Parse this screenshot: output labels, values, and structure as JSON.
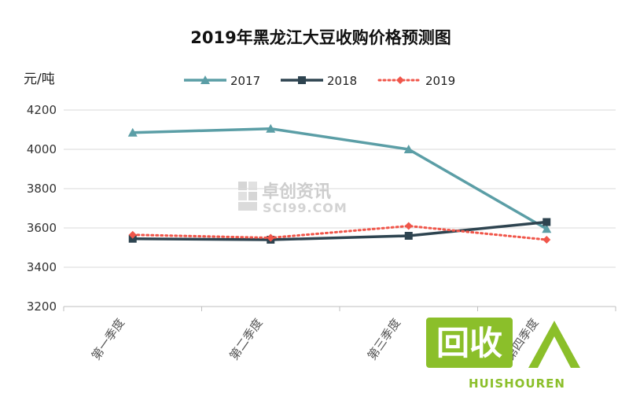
{
  "chart_data": {
    "type": "line",
    "title": "2019年黑龙江大豆收购价格预测图",
    "ylabel": "元/吨",
    "xlabel": "",
    "categories": [
      "第一季度",
      "第二季度",
      "第三季度",
      "第四季度"
    ],
    "ylim": [
      3200,
      4200
    ],
    "yticks": [
      3200,
      3400,
      3600,
      3800,
      4000,
      4200
    ],
    "grid": true,
    "legend_position": "top",
    "series": [
      {
        "name": "2017",
        "values": [
          4085,
          4105,
          4000,
          3595
        ],
        "color": "#5b9ea6",
        "marker": "triangle",
        "dash": "solid"
      },
      {
        "name": "2018",
        "values": [
          3545,
          3540,
          3560,
          3630
        ],
        "color": "#2e4450",
        "marker": "square",
        "dash": "solid"
      },
      {
        "name": "2019",
        "values": [
          3565,
          3550,
          3610,
          3540
        ],
        "color": "#f0564a",
        "marker": "diamond",
        "dash": "dotted"
      }
    ]
  },
  "watermark": {
    "text": "卓创资讯",
    "subtext": "SCI99.COM"
  },
  "logo": {
    "text": "回收",
    "subtext": "HUISHOUREN"
  }
}
